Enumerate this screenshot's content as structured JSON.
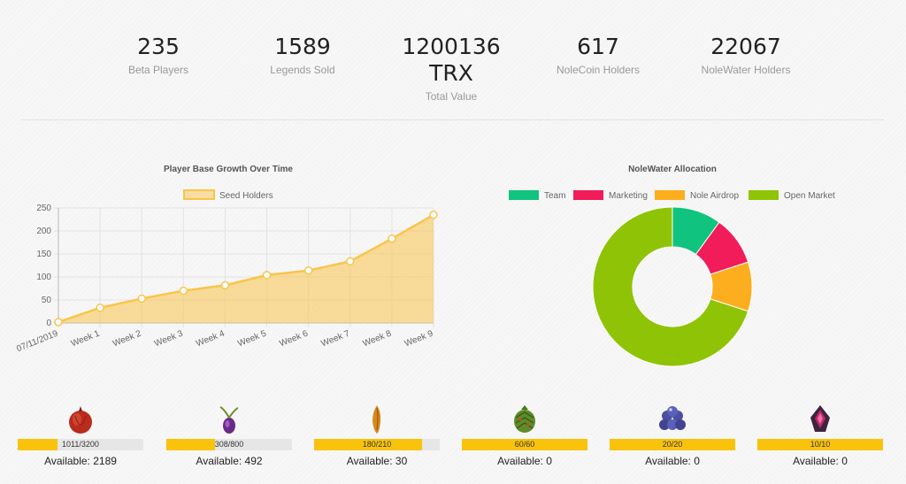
{
  "stats": [
    {
      "value": "235",
      "label": "Beta Players"
    },
    {
      "value": "1589",
      "label": "Legends Sold"
    },
    {
      "value": "1200136",
      "value2": "TRX",
      "label": "Total Value"
    },
    {
      "value": "617",
      "label": "NoleCoin Holders"
    },
    {
      "value": "22067",
      "label": "NoleWater Holders"
    }
  ],
  "chart_data": [
    {
      "type": "area",
      "title": "Player Base Growth Over Time",
      "categories": [
        "07/11/2019",
        "Week 1",
        "Week 2",
        "Week 3",
        "Week 4",
        "Week 5",
        "Week 6",
        "Week 7",
        "Week 8",
        "Week 9"
      ],
      "series": [
        {
          "name": "Seed Holders",
          "values": [
            2,
            33,
            53,
            70,
            82,
            104,
            114,
            134,
            183,
            235
          ],
          "color": "#f9c54b"
        }
      ],
      "ylim": [
        0,
        250
      ],
      "yticks": [
        "0",
        "50",
        "100",
        "150",
        "200",
        "250"
      ],
      "legend": "top",
      "grid": true
    },
    {
      "type": "pie",
      "donut": true,
      "title": "NoleWater Allocation",
      "labels": [
        "Team",
        "Marketing",
        "Nole Airdrop",
        "Open Market"
      ],
      "values": [
        10,
        10,
        10,
        70
      ],
      "colors": [
        "#10c37e",
        "#f21c5a",
        "#fcae1e",
        "#8fc406"
      ],
      "legend": "top"
    }
  ],
  "items": [
    {
      "icon": "red-onion-seed-icon",
      "bar_text": "1011/3200",
      "fraction": 0.316,
      "available": "Available: 2189"
    },
    {
      "icon": "purple-sprout-seed-icon",
      "bar_text": "308/800",
      "fraction": 0.385,
      "available": "Available: 492"
    },
    {
      "icon": "orange-root-seed-icon",
      "bar_text": "180/210",
      "fraction": 0.857,
      "available": "Available: 30"
    },
    {
      "icon": "green-pinecone-seed-icon",
      "bar_text": "60/60",
      "fraction": 1.0,
      "available": "Available: 0"
    },
    {
      "icon": "berry-cluster-seed-icon",
      "bar_text": "20/20",
      "fraction": 1.0,
      "available": "Available: 0"
    },
    {
      "icon": "crystal-seed-icon",
      "bar_text": "10/10",
      "fraction": 1.0,
      "available": "Available: 0"
    }
  ]
}
